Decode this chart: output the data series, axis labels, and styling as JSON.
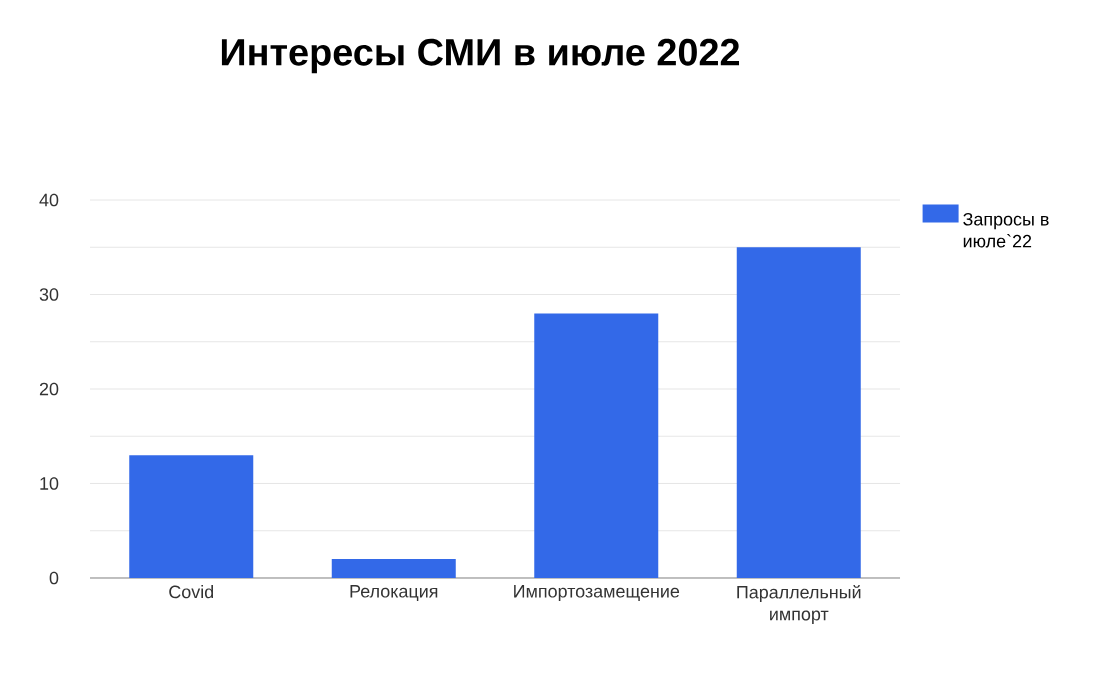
{
  "chart_data": {
    "type": "bar",
    "title": "Интересы СМИ в июле 2022",
    "categories": [
      "Covid",
      "Релокация",
      "Импортозамещение",
      "Параллельный импорт"
    ],
    "series": [
      {
        "name": "Запросы в июле`22",
        "color": "#3369e8",
        "values": [
          13,
          2,
          28,
          35
        ]
      }
    ],
    "ylim": [
      0,
      40
    ],
    "yticks": [
      0,
      {
        "value": 5,
        "label": null
      },
      10,
      {
        "value": 15,
        "label": null
      },
      20,
      {
        "value": 25,
        "label": null
      },
      30,
      {
        "value": 35,
        "label": null
      },
      40
    ],
    "grid": true,
    "legend": "top right"
  }
}
